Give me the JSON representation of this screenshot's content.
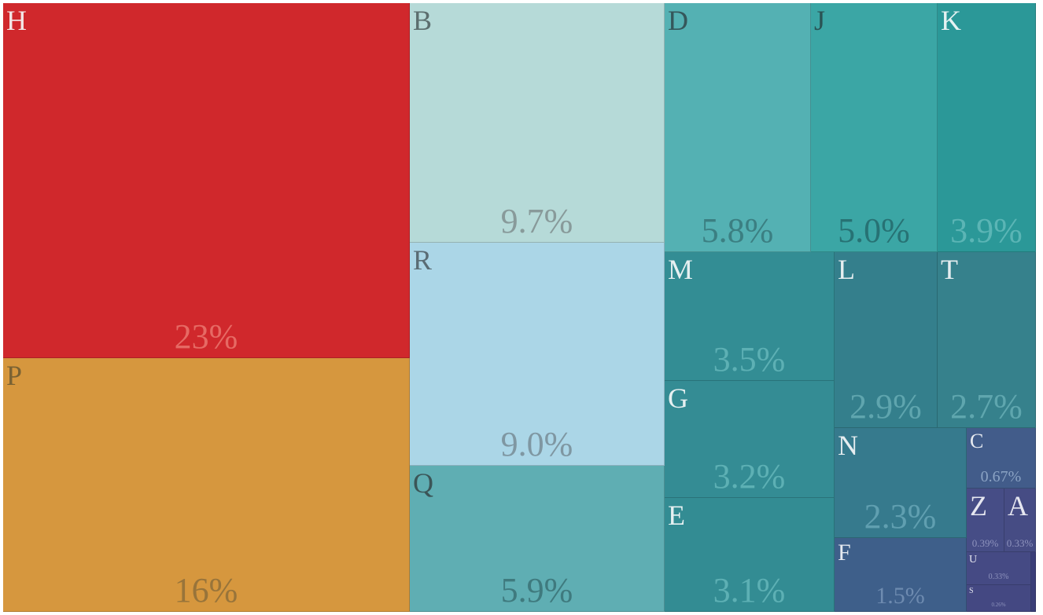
{
  "chart_data": {
    "type": "treemap",
    "tiles": [
      {
        "label": "H",
        "value": "23%",
        "color": "#d0282c",
        "label_color": "#f3e7e7",
        "value_color": "#e66a64"
      },
      {
        "label": "P",
        "value": "16%",
        "color": "#d6973e",
        "label_color": "#7a6233",
        "value_color": "#98743a"
      },
      {
        "label": "B",
        "value": "9.7%",
        "color": "#b6dad8",
        "label_color": "#5c6e6e",
        "value_color": "#889a9a"
      },
      {
        "label": "R",
        "value": "9.0%",
        "color": "#abd6e7",
        "label_color": "#5a6c74",
        "value_color": "#7f97a2"
      },
      {
        "label": "Q",
        "value": "5.9%",
        "color": "#5faeb3",
        "label_color": "#3b5557",
        "value_color": "#3f7a7e"
      },
      {
        "label": "D",
        "value": "5.8%",
        "color": "#54b1b3",
        "label_color": "#35575b",
        "value_color": "#3b7f82"
      },
      {
        "label": "J",
        "value": "5.0%",
        "color": "#3ba6a5",
        "label_color": "#2a5354",
        "value_color": "#277274"
      },
      {
        "label": "K",
        "value": "3.9%",
        "color": "#2b9898",
        "label_color": "#e6f2f2",
        "value_color": "#5bb5b5"
      },
      {
        "label": "M",
        "value": "3.5%",
        "color": "#338d94",
        "label_color": "#e6f0f1",
        "value_color": "#5db0b4"
      },
      {
        "label": "G",
        "value": "3.2%",
        "color": "#348c94",
        "label_color": "#e6f0f1",
        "value_color": "#5db0b4"
      },
      {
        "label": "E",
        "value": "3.1%",
        "color": "#338c93",
        "label_color": "#e6f0f1",
        "value_color": "#5db0b4"
      },
      {
        "label": "L",
        "value": "2.9%",
        "color": "#347f8c",
        "label_color": "#e6eef0",
        "value_color": "#5fa5ae"
      },
      {
        "label": "T",
        "value": "2.7%",
        "color": "#36818c",
        "label_color": "#e6eef0",
        "value_color": "#5fa6ae"
      },
      {
        "label": "N",
        "value": "2.3%",
        "color": "#367a8d",
        "label_color": "#e6edf0",
        "value_color": "#609fb0"
      },
      {
        "label": "F",
        "value": "1.5%",
        "color": "#3e5f8a",
        "label_color": "#e6eaf0",
        "value_color": "#6e8bb0"
      },
      {
        "label": "C",
        "value": "0.67%",
        "color": "#425c8a",
        "label_color": "#e6eaf0",
        "value_color": "#8ba3c4"
      },
      {
        "label": "Z",
        "value": "0.39%",
        "color": "#464d86",
        "label_color": "#e6e7f0",
        "value_color": "#8e93bd"
      },
      {
        "label": "A",
        "value": "0.33%",
        "color": "#464c84",
        "label_color": "#e6e7f0",
        "value_color": "#8e93bd"
      },
      {
        "label": "U",
        "value": "0.33%",
        "color": "#454a84",
        "label_color": "#e6e7f0",
        "value_color": "#8e93bd"
      },
      {
        "label": "S",
        "value": "0.26%",
        "color": "#444882",
        "label_color": "#e6e7f0",
        "value_color": "#8e93bd"
      },
      {
        "label": "",
        "value": "",
        "color": "#3a3e78",
        "label_color": "#e6e7f0",
        "value_color": "#8e93bd"
      }
    ]
  }
}
